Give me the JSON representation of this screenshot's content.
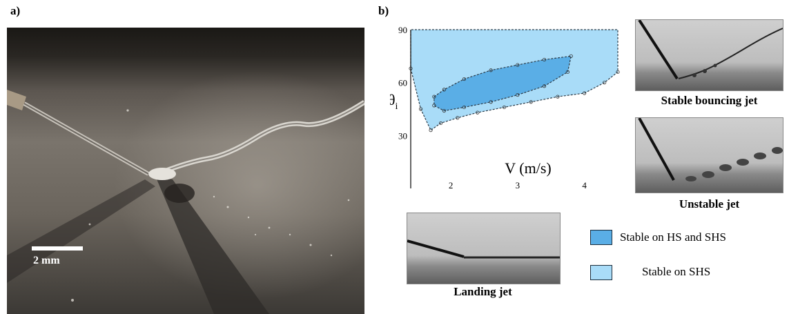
{
  "panel_a": {
    "label": "a)",
    "scale_text": "2 mm"
  },
  "panel_b": {
    "label": "b)",
    "chart_data": {
      "type": "area",
      "xlabel": "V (m/s)",
      "ylabel": "θi",
      "xlim": [
        1.4,
        4.5
      ],
      "ylim": [
        0,
        90
      ],
      "x_ticks": [
        "2",
        "3",
        "4"
      ],
      "y_ticks": [
        "30",
        "60",
        "90"
      ],
      "regions": [
        {
          "name": "Stable on SHS",
          "color": "#a9dcf8",
          "boundary_x": [
            1.4,
            1.55,
            1.7,
            1.85,
            2.1,
            2.4,
            2.8,
            3.2,
            3.6,
            4.0,
            4.3,
            4.5,
            4.5,
            1.4
          ],
          "boundary_y": [
            68,
            45,
            33,
            37,
            40,
            43,
            46,
            49,
            52,
            54,
            60,
            66,
            90,
            90
          ]
        },
        {
          "name": "Stable on HS and SHS",
          "color": "#5aaee6",
          "boundary_x": [
            1.75,
            1.9,
            2.2,
            2.6,
            3.0,
            3.4,
            3.8,
            3.75,
            3.4,
            3.0,
            2.6,
            2.2,
            1.9,
            1.75
          ],
          "boundary_y": [
            52,
            56,
            62,
            67,
            70,
            73,
            75,
            66,
            58,
            53,
            49,
            46,
            44,
            47
          ]
        }
      ]
    },
    "legend": [
      {
        "label": "Stable on HS and SHS",
        "color": "#5aaee6"
      },
      {
        "label": "Stable on SHS",
        "color": "#a9dcf8"
      }
    ],
    "captions": {
      "stable": "Stable bouncing jet",
      "unstable": "Unstable jet",
      "landing": "Landing jet"
    }
  }
}
